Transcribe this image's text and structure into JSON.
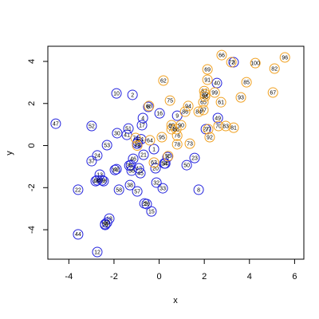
{
  "chart_data": {
    "type": "scatter",
    "xlabel": "x",
    "ylabel": "y",
    "xlim": [
      -4.93,
      6.41
    ],
    "ylim": [
      -5.4,
      4.72
    ],
    "xticks": [
      -4,
      -2,
      0,
      2,
      4,
      6
    ],
    "yticks": [
      -4,
      -2,
      0,
      2,
      4
    ],
    "series": [
      {
        "color": "#2222dd",
        "labels": [
          "1",
          "2",
          "3",
          "4",
          "5",
          "6",
          "7",
          "8",
          "9",
          "10",
          "11",
          "12",
          "13",
          "14",
          "15",
          "16",
          "17",
          "18",
          "19",
          "20",
          "21",
          "22",
          "23",
          "24",
          "25",
          "26",
          "27",
          "28",
          "29",
          "30",
          "31",
          "32",
          "33",
          "34",
          "35",
          "36",
          "37",
          "38",
          "39",
          "40",
          "41",
          "42",
          "43",
          "44",
          "45",
          "46",
          "47",
          "48",
          "49",
          "50",
          "51",
          "52",
          "53",
          "54",
          "56",
          "57",
          "58",
          "59",
          "60"
        ],
        "x": [
          -0.23,
          -1.18,
          3.3,
          -0.72,
          0.37,
          -0.48,
          -0.94,
          1.75,
          0.8,
          -1.89,
          -1.25,
          -2.74,
          -2.63,
          -1.96,
          -0.34,
          0.02,
          -0.76,
          -2.21,
          -0.97,
          -0.16,
          -0.69,
          -3.59,
          1.57,
          -2.74,
          -0.65,
          -2.39,
          2.07,
          -2.46,
          -0.55,
          -1.86,
          -0.8,
          -0.12,
          0.16,
          0.27,
          -1.32,
          -1.22,
          -2.99,
          -1.29,
          -2.53,
          2.56,
          -1.43,
          -1.89,
          -0.9,
          -3.59,
          -0.83,
          -1.15,
          -4.58,
          -2.81,
          2.6,
          1.22,
          -1.36,
          -2.99,
          -2.31,
          0.23,
          -2.74,
          -0.97,
          -1.78,
          -2.39,
          -2.31
        ],
        "y": [
          -0.17,
          2.41,
          3.96,
          1.31,
          -0.55,
          1.84,
          0.17,
          -2.1,
          1.42,
          2.48,
          -0.93,
          -5.06,
          -1.38,
          -1.16,
          -3.13,
          1.53,
          0.97,
          -3.47,
          0.09,
          -1.08,
          -0.44,
          -2.1,
          -0.59,
          -0.47,
          -2.75,
          -3.77,
          0.78,
          -1.69,
          -2.78,
          0.59,
          0.3,
          -1.76,
          -2.03,
          -0.85,
          -0.95,
          -1.19,
          -0.74,
          -1.88,
          -1.65,
          2.97,
          0.51,
          -1.12,
          -1.08,
          -4.22,
          -1.31,
          -0.63,
          1.04,
          -1.69,
          1.31,
          -0.93,
          0.81,
          0.93,
          0.02,
          -0.85,
          -1.65,
          -2.18,
          -2.1,
          -3.73,
          -3.66
        ]
      },
      {
        "color": "#f0a020",
        "labels": [
          "55",
          "61",
          "62",
          "63",
          "64",
          "65",
          "66",
          "67",
          "68",
          "69",
          "70",
          "71",
          "72",
          "73",
          "74",
          "75",
          "76",
          "77",
          "78",
          "79",
          "80",
          "81",
          "82",
          "83",
          "84",
          "85",
          "86",
          "87",
          "88",
          "89",
          "90",
          "91",
          "92",
          "93",
          "94",
          "95",
          "96",
          "97",
          "98",
          "99",
          "100"
        ],
        "x": [
          0.4,
          2.74,
          0.19,
          -0.23,
          -0.41,
          1.96,
          2.77,
          5.04,
          -0.45,
          2.14,
          2.63,
          -1.04,
          3.2,
          1.36,
          0.55,
          0.48,
          0.8,
          2.17,
          0.8,
          -0.97,
          0.55,
          3.3,
          5.11,
          2.95,
          1.75,
          3.87,
          1.15,
          2.0,
          0.76,
          2.03,
          0.97,
          2.14,
          2.24,
          3.62,
          1.29,
          0.12,
          5.57,
          1.96,
          2.03,
          2.46,
          4.26
        ],
        "y": [
          -0.5,
          2.06,
          3.09,
          -0.81,
          0.25,
          2.06,
          4.3,
          2.52,
          1.88,
          3.62,
          0.93,
          0.36,
          3.96,
          0.09,
          0.78,
          2.14,
          0.47,
          0.78,
          0.06,
          0.0,
          0.97,
          0.85,
          3.66,
          0.93,
          1.61,
          3.01,
          1.61,
          2.59,
          0.78,
          2.44,
          0.97,
          3.13,
          0.4,
          2.29,
          1.88,
          0.4,
          4.19,
          1.69,
          2.33,
          2.52,
          3.92
        ]
      }
    ]
  }
}
